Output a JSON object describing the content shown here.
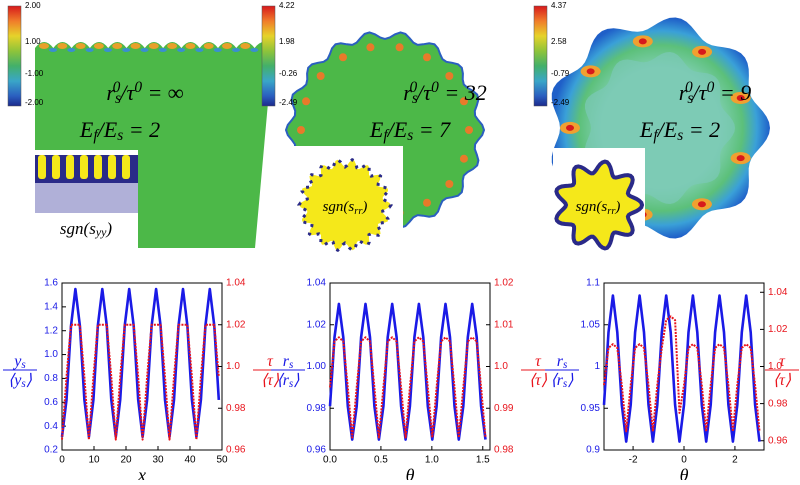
{
  "panels": [
    {
      "colorbar_ticks": [
        "2.00",
        "1.00",
        "-1.00",
        "-2.00"
      ],
      "ratio_label": [
        {
          "text": "r"
        },
        {
          "sub": "s"
        },
        {
          "sup": "0"
        },
        {
          "text": "/τ"
        },
        {
          "sup": "0"
        },
        {
          "text": " = ∞"
        }
      ],
      "energy_label": [
        {
          "text": "E"
        },
        {
          "sub": "f"
        },
        {
          "text": "/E"
        },
        {
          "sub": "s"
        },
        {
          "text": " = 2"
        }
      ],
      "inset_label": [
        {
          "text": "sgn(s"
        },
        {
          "sub": "yy"
        },
        {
          "text": ")"
        }
      ]
    },
    {
      "colorbar_ticks": [
        "4.22",
        "1.98",
        "-0.26",
        "-2.49"
      ],
      "ratio_label": [
        {
          "text": "r"
        },
        {
          "sub": "s"
        },
        {
          "sup": "0"
        },
        {
          "text": "/τ"
        },
        {
          "sup": "0"
        },
        {
          "text": " = 32"
        }
      ],
      "energy_label": [
        {
          "text": "E"
        },
        {
          "sub": "f"
        },
        {
          "text": "/E"
        },
        {
          "sub": "s"
        },
        {
          "text": " = 7"
        }
      ],
      "inset_label": [
        {
          "text": "sgn(s"
        },
        {
          "sub": "rr"
        },
        {
          "text": ")"
        }
      ]
    },
    {
      "colorbar_ticks": [
        "4.37",
        "2.58",
        "-0.79",
        "-2.49"
      ],
      "ratio_label": [
        {
          "text": "r"
        },
        {
          "sub": "s"
        },
        {
          "sup": "0"
        },
        {
          "text": "/τ"
        },
        {
          "sup": "0"
        },
        {
          "text": " = 9"
        }
      ],
      "energy_label": [
        {
          "text": "E"
        },
        {
          "sub": "f"
        },
        {
          "text": "/E"
        },
        {
          "sub": "s"
        },
        {
          "text": " = 2"
        }
      ],
      "inset_label": [
        {
          "text": "sgn(s"
        },
        {
          "sub": "rr"
        },
        {
          "text": ")"
        }
      ]
    }
  ],
  "chart_data": [
    {
      "type": "line",
      "xlabel": "x",
      "ylabel": {
        "num": [
          {
            "text": "y"
          },
          {
            "sub": "s"
          }
        ],
        "den": [
          {
            "text": "⟨y"
          },
          {
            "sub": "s"
          },
          {
            "text": "⟩"
          }
        ]
      },
      "y2label": {
        "num": [
          {
            "text": "τ"
          }
        ],
        "den": [
          {
            "text": "⟨τ⟩"
          }
        ]
      },
      "xlim": [
        0,
        50
      ],
      "xticks": [
        0,
        10,
        20,
        30,
        40,
        50
      ],
      "ylim": [
        0.2,
        1.6
      ],
      "yticks": [
        0.2,
        0.4,
        0.6,
        0.8,
        {
          "value": 1,
          "label": "1.0"
        },
        1.2,
        1.4,
        1.6
      ],
      "y2lim": [
        0.96,
        1.04
      ],
      "y2ticks": [
        0.96,
        0.98,
        {
          "value": 1,
          "label": "1.0"
        },
        1.02,
        1.04
      ],
      "x": [
        0,
        1.4,
        2.8,
        4.2,
        5.6,
        7,
        8.4,
        9.8,
        11.2,
        12.6,
        14,
        15.4,
        16.8,
        18.2,
        19.6,
        21,
        22.4,
        23.8,
        25.2,
        26.6,
        28,
        29.4,
        30.8,
        32.2,
        33.6,
        35,
        36.4,
        37.8,
        39.2,
        40.6,
        42,
        43.4,
        44.8,
        46.2,
        47.6,
        49
      ],
      "series": [
        {
          "color": "#1a1ae6",
          "values": [
            0.31,
            0.62,
            1.24,
            1.55,
            1.24,
            0.62,
            0.31,
            0.62,
            1.24,
            1.55,
            1.24,
            0.62,
            0.31,
            0.62,
            1.24,
            1.55,
            1.24,
            0.62,
            0.31,
            0.62,
            1.24,
            1.55,
            1.24,
            0.62,
            0.31,
            0.62,
            1.24,
            1.55,
            1.24,
            0.62,
            0.31,
            0.62,
            1.24,
            1.55,
            1.24,
            0.62
          ]
        },
        {
          "color": "#e8141c",
          "axis": "y2",
          "values": [
            0.965,
            0.995,
            1.02,
            1.02,
            1.02,
            0.995,
            0.965,
            0.995,
            1.02,
            1.02,
            1.02,
            0.995,
            0.965,
            0.995,
            1.02,
            1.02,
            1.02,
            0.995,
            0.965,
            0.995,
            1.02,
            1.02,
            1.02,
            0.995,
            0.965,
            0.995,
            1.02,
            1.02,
            1.02,
            0.995,
            0.965,
            0.995,
            1.02,
            1.02,
            1.02,
            0.995
          ]
        }
      ]
    },
    {
      "type": "line",
      "xlabel": "θ",
      "ylabel": {
        "num": [
          {
            "text": "r"
          },
          {
            "sub": "s"
          }
        ],
        "den": [
          {
            "text": "⟨r"
          },
          {
            "sub": "s"
          },
          {
            "text": "⟩"
          }
        ]
      },
      "y2label": {
        "num": [
          {
            "text": "τ"
          }
        ],
        "den": [
          {
            "text": "⟨τ⟩"
          }
        ]
      },
      "xlim": [
        0,
        1.571
      ],
      "xticks": [
        {
          "value": 0,
          "label": "0.0"
        },
        0.5,
        {
          "value": 1,
          "label": "1.0"
        },
        1.5
      ],
      "ylim": [
        0.96,
        1.04
      ],
      "yticks": [
        0.96,
        0.98,
        {
          "value": 1,
          "label": "1.00"
        },
        1.02,
        1.04
      ],
      "y2lim": [
        0.98,
        1.02
      ],
      "y2ticks": [
        0.98,
        0.99,
        {
          "value": 1,
          "label": "1.0"
        },
        1.01,
        1.02
      ],
      "x": [
        0,
        0.044,
        0.087,
        0.131,
        0.175,
        0.218,
        0.262,
        0.305,
        0.349,
        0.393,
        0.436,
        0.48,
        0.524,
        0.567,
        0.611,
        0.654,
        0.698,
        0.742,
        0.785,
        0.829,
        0.873,
        0.916,
        0.96,
        1.004,
        1.047,
        1.091,
        1.134,
        1.178,
        1.222,
        1.265,
        1.309,
        1.353,
        1.396,
        1.44,
        1.484,
        1.527
      ],
      "series": [
        {
          "color": "#1a1ae6",
          "values": [
            0.981,
            1.014,
            1.03,
            1.014,
            0.981,
            0.965,
            0.981,
            1.014,
            1.03,
            1.014,
            0.981,
            0.965,
            0.981,
            1.014,
            1.03,
            1.014,
            0.981,
            0.965,
            0.981,
            1.014,
            1.03,
            1.014,
            0.981,
            0.965,
            0.981,
            1.014,
            1.03,
            1.014,
            0.981,
            0.965,
            0.981,
            1.014,
            1.03,
            1.014,
            0.981,
            0.965
          ]
        },
        {
          "color": "#e8141c",
          "axis": "y2",
          "values": [
            0.995,
            1.006,
            1.007,
            1.006,
            0.995,
            0.983,
            0.995,
            1.006,
            1.007,
            1.006,
            0.995,
            0.983,
            0.995,
            1.006,
            1.007,
            1.006,
            0.995,
            0.983,
            0.995,
            1.006,
            1.007,
            1.006,
            0.995,
            0.983,
            0.995,
            1.006,
            1.007,
            1.006,
            0.995,
            0.983,
            0.995,
            1.006,
            1.007,
            1.006,
            0.995,
            0.983
          ]
        }
      ]
    },
    {
      "type": "line",
      "xlabel": "θ",
      "ylabel": {
        "num": [
          {
            "text": "r"
          },
          {
            "sub": "s"
          }
        ],
        "den": [
          {
            "text": "⟨r"
          },
          {
            "sub": "s"
          },
          {
            "text": "⟩"
          }
        ]
      },
      "y2label": {
        "num": [
          {
            "text": "τ"
          }
        ],
        "den": [
          {
            "text": "⟨τ⟩"
          }
        ]
      },
      "xlim": [
        -3.142,
        3.142
      ],
      "xticks": [
        -2,
        0,
        2
      ],
      "ylim": [
        0.9,
        1.1
      ],
      "yticks": [
        0.9,
        0.95,
        1,
        1.05,
        1.1
      ],
      "y2lim": [
        0.955,
        1.045
      ],
      "y2ticks": [
        0.96,
        0.98,
        {
          "value": 1,
          "label": "1.0"
        },
        1.02,
        1.04
      ],
      "x": [
        -3.142,
        -2.967,
        -2.793,
        -2.618,
        -2.443,
        -2.269,
        -2.094,
        -1.92,
        -1.745,
        -1.571,
        -1.396,
        -1.222,
        -1.047,
        -0.873,
        -0.698,
        -0.524,
        -0.349,
        -0.175,
        0,
        0.175,
        0.349,
        0.524,
        0.698,
        0.873,
        1.047,
        1.222,
        1.396,
        1.571,
        1.745,
        1.92,
        2.094,
        2.269,
        2.443,
        2.618,
        2.793,
        2.967
      ],
      "series": [
        {
          "color": "#1a1ae6",
          "values": [
            0.954,
            1.041,
            1.085,
            1.041,
            0.954,
            0.91,
            0.954,
            1.041,
            1.085,
            1.041,
            0.954,
            0.91,
            0.954,
            1.041,
            1.085,
            1.041,
            0.954,
            0.91,
            0.954,
            1.041,
            1.085,
            1.041,
            0.954,
            0.91,
            0.954,
            1.041,
            1.085,
            1.041,
            0.954,
            0.91,
            0.954,
            1.041,
            1.085,
            1.041,
            0.954,
            0.91
          ]
        },
        {
          "color": "#e8141c",
          "axis": "y2",
          "values": [
            0.99,
            1.01,
            1.012,
            1.01,
            0.99,
            0.965,
            0.99,
            1.01,
            1.012,
            1.01,
            0.99,
            0.965,
            0.99,
            1.01,
            1.025,
            1.027,
            1.025,
            0.975,
            0.99,
            1.01,
            1.012,
            1.01,
            0.99,
            0.965,
            0.99,
            1.01,
            1.012,
            1.01,
            0.99,
            0.965,
            0.99,
            1.01,
            1.012,
            1.01,
            0.99,
            0.965
          ]
        }
      ]
    }
  ]
}
